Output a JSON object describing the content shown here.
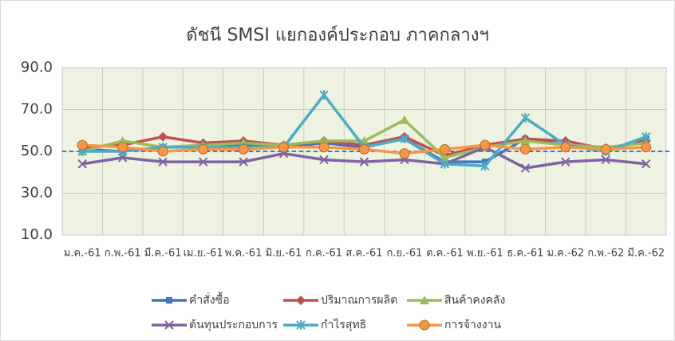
{
  "chart_data": {
    "type": "line",
    "title": "ดัชนี SMSI แยกองค์ประกอบ ภาคกลางฯ",
    "categories": [
      "ม.ค.-61",
      "ก.พ.-61",
      "มี.ค.-61",
      "เม.ย.-61",
      "พ.ค.-61",
      "มิ.ย.-61",
      "ก.ค.-61",
      "ส.ค.-61",
      "ก.ย.-61",
      "ต.ค.-61",
      "พ.ย.-61",
      "ธ.ค.-61",
      "ม.ค.-62",
      "ก.พ.-62",
      "มี.ค.-62"
    ],
    "series": [
      {
        "name": "คำสั่งซื้อ",
        "color": "#4472c4",
        "marker": "square",
        "values": [
          51,
          50,
          52,
          52,
          53,
          52,
          54,
          52,
          56,
          45,
          45,
          56,
          53,
          50,
          56
        ]
      },
      {
        "name": "ปริมาณการผลิต",
        "color": "#c0504d",
        "marker": "diamond",
        "values": [
          52,
          53,
          57,
          54,
          55,
          53,
          55,
          53,
          57,
          48,
          53,
          56,
          55,
          51,
          55
        ]
      },
      {
        "name": "สินค้าคงคลัง",
        "color": "#9bbb59",
        "marker": "triangle",
        "values": [
          50,
          55,
          52,
          53,
          54,
          53,
          55,
          55,
          65,
          47,
          52,
          55,
          53,
          52,
          54
        ]
      },
      {
        "name": "ต้นทุนประกอบการ",
        "color": "#8064a2",
        "marker": "x",
        "values": [
          44,
          47,
          45,
          45,
          45,
          49,
          46,
          45,
          46,
          44,
          52,
          42,
          45,
          46,
          44
        ]
      },
      {
        "name": "กำไรสุทธิ",
        "color": "#4bacc6",
        "marker": "star",
        "values": [
          50,
          50,
          52,
          52,
          52,
          52,
          77,
          52,
          56,
          44,
          43,
          66,
          53,
          50,
          57
        ]
      },
      {
        "name": "การจ้างงาน",
        "color": "#f79646",
        "marker": "circle",
        "values": [
          53,
          52,
          50,
          51,
          51,
          52,
          52,
          51,
          49,
          51,
          53,
          51,
          52,
          51,
          52
        ]
      }
    ],
    "ylim": [
      10,
      90
    ],
    "yticks": [
      {
        "value": 10,
        "label": "10.0"
      },
      {
        "value": 30,
        "label": "30.0"
      },
      {
        "value": 50,
        "label": "50.0"
      },
      {
        "value": 70,
        "label": "70.0"
      },
      {
        "value": 90,
        "label": "90.0"
      }
    ],
    "reference_line": 50,
    "grid": true
  }
}
